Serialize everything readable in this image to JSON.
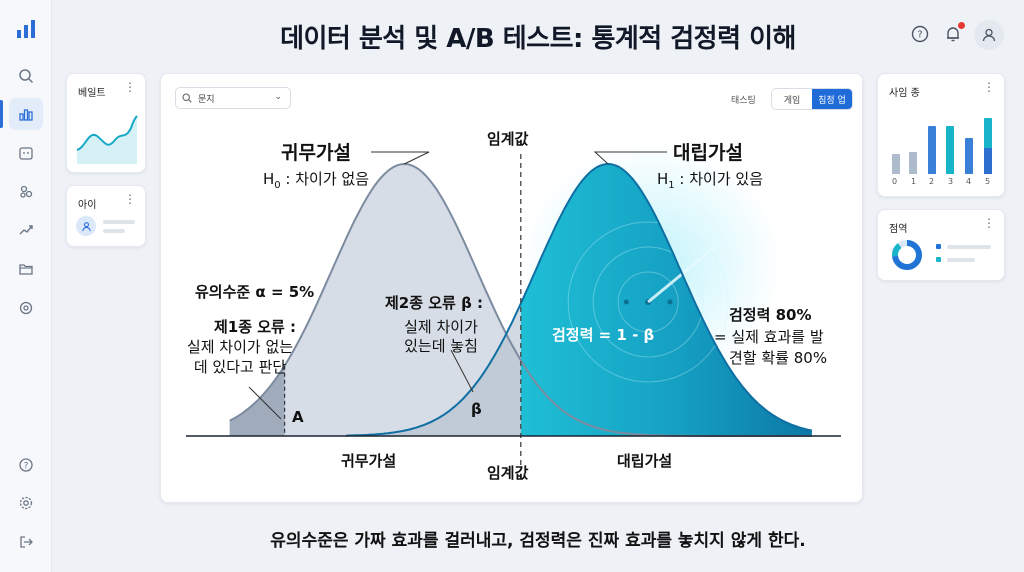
{
  "page": {
    "title": "데이터 분석 및 A/B 테스트: 통계적 검정력 이해",
    "caption": "유의수준은 가짜 효과를 걸러내고, 검정력은 진짜 효과를 놓치지 않게 한다."
  },
  "sidebar": {
    "items": [
      "search-icon",
      "bar-chart-icon",
      "calendar-icon",
      "users-icon",
      "trend-icon",
      "folder-icon",
      "settings-badge-icon"
    ],
    "bottom": [
      "help-icon",
      "gear-icon",
      "logout-icon"
    ]
  },
  "left_widgets": {
    "w1_label": "베일트",
    "w2_label": "아이"
  },
  "right_widgets": {
    "w1_label": "사임 종",
    "w1_ticks": [
      "0",
      "1",
      "2",
      "3",
      "4",
      "5"
    ],
    "w2_label": "점역"
  },
  "toolbar": {
    "search_text": "문지",
    "tab_label": "태스팅",
    "seg_1": "게임",
    "seg_2": "침정 업"
  },
  "chart": {
    "null_title": "귀무가설",
    "null_hyp": "H",
    "null_sub": "0",
    "null_text": " : 차이가 없음",
    "alt_title": "대립가설",
    "alt_hyp": "H",
    "alt_sub": "1",
    "alt_text": " : 차이가 있음",
    "critical_top": "임계값",
    "critical_bottom": "임계값",
    "alpha_label": "유의수준 α = 5%",
    "type1_title": "제1종 오류 :",
    "type1_line1": "실제 차이가 없는",
    "type1_line2": "데 있다고 판단",
    "type1_mark": "A",
    "type2_title": "제2종 오류 β :",
    "type2_line1": "실제 차이가",
    "type2_line2": "있는데 놓침",
    "type2_mark": "β",
    "power_formula": "검정력 = 1 - β",
    "power_title": "검정력 80%",
    "power_line1": "= 실제 효과를 발",
    "power_line2": "견할 확률 80%",
    "axis_null": "귀무가설",
    "axis_alt": "대립가설"
  },
  "chart_data": {
    "type": "area",
    "null_mean": -1.6,
    "alt_mean": 1.2,
    "sd": 1.0,
    "critical_value": 0.0,
    "alpha": 0.05,
    "power": 0.8
  },
  "colors": {
    "accent": "#1f6bd8",
    "null_fill": "#c9d2de",
    "null_line": "#7d8ba0",
    "alt_fill": "#16a6c4",
    "alt_line": "#0f6fa3"
  }
}
